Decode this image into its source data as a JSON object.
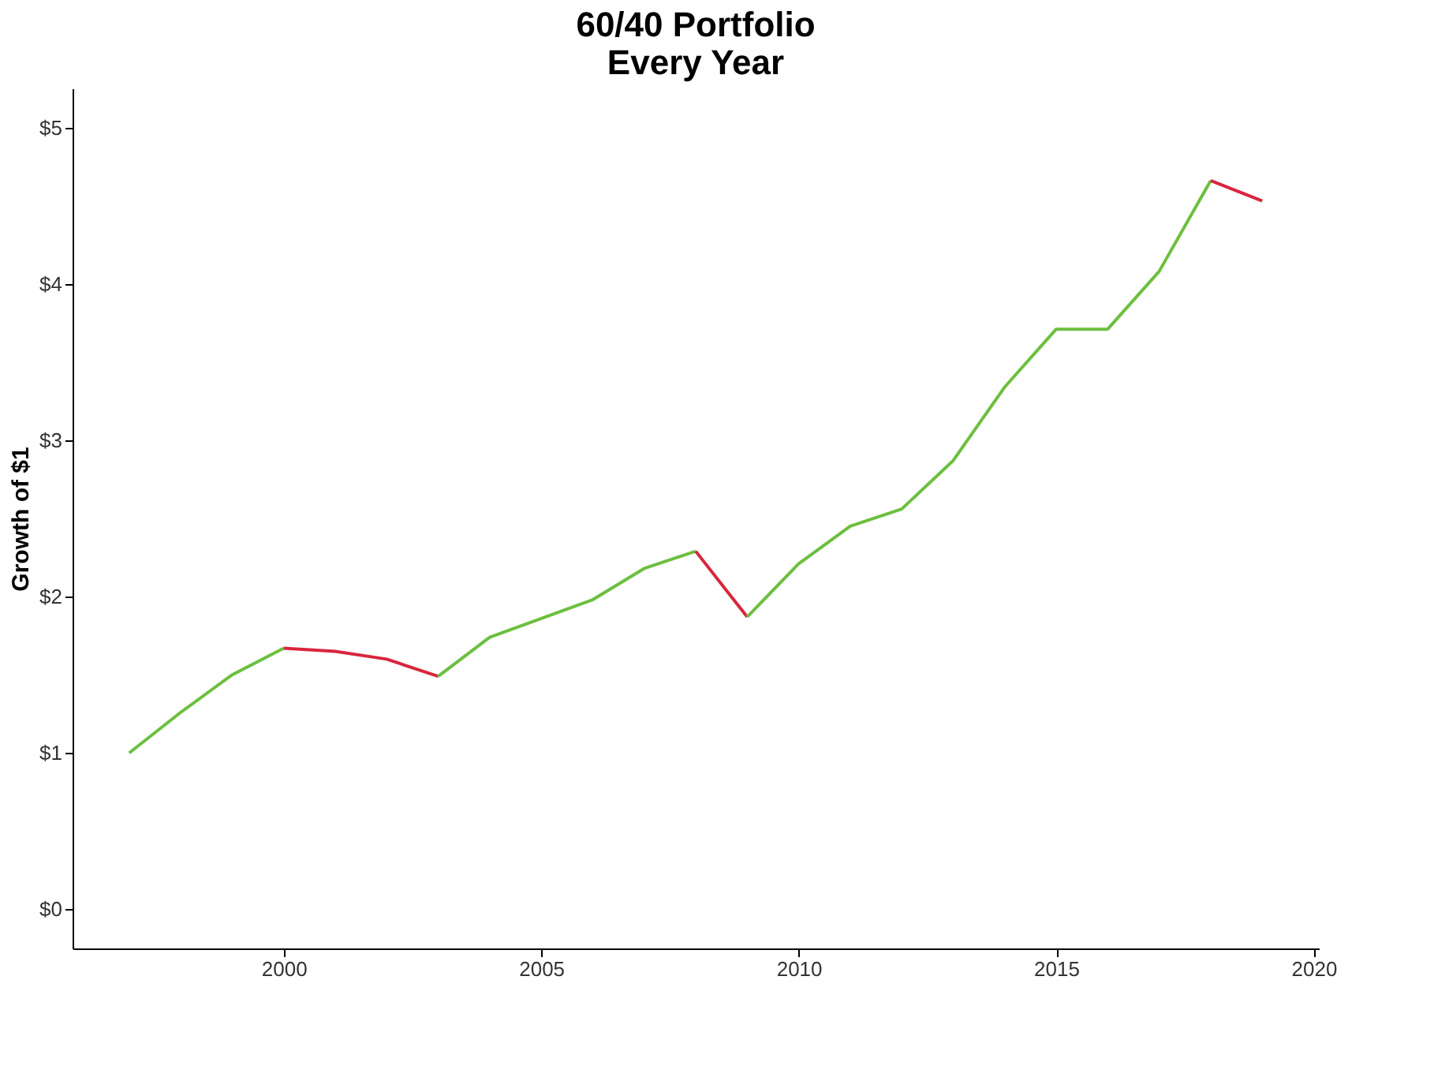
{
  "chart_data": {
    "type": "line",
    "title": [
      "60/40 Portfolio",
      "Every Year"
    ],
    "ylabel": "Growth of $1",
    "series": [
      {
        "color": "#6cbf3f",
        "x": [
          1997,
          1998,
          1999,
          2000
        ],
        "values": [
          1.0,
          1.26,
          1.5,
          1.67
        ]
      },
      {
        "color": "#d7263d",
        "x": [
          2000,
          2001,
          2002,
          2003
        ],
        "values": [
          1.67,
          1.65,
          1.6,
          1.49
        ]
      },
      {
        "color": "#6cbf3f",
        "x": [
          2003,
          2004,
          2005,
          2006,
          2007,
          2008
        ],
        "values": [
          1.49,
          1.74,
          1.86,
          1.98,
          2.18,
          2.29
        ]
      },
      {
        "color": "#d7263d",
        "x": [
          2008,
          2009
        ],
        "values": [
          2.29,
          1.87
        ]
      },
      {
        "color": "#6cbf3f",
        "x": [
          2009,
          2010,
          2011,
          2012,
          2013,
          2014,
          2015,
          2016,
          2017,
          2018
        ],
        "values": [
          1.87,
          2.21,
          2.45,
          2.56,
          2.87,
          3.34,
          3.71,
          3.71,
          4.08,
          4.66
        ]
      },
      {
        "color": "#d7263d",
        "x": [
          2018,
          2019
        ],
        "values": [
          4.66,
          4.53
        ]
      }
    ],
    "xlim": [
      1995.9,
      2020.1
    ],
    "xticks": [
      2000,
      2005,
      2010,
      2015,
      2020
    ],
    "ylim": [
      -0.25,
      5.25
    ],
    "yticks": [
      {
        "value": 0,
        "label": "$0"
      },
      {
        "value": 1,
        "label": "$1"
      },
      {
        "value": 2,
        "label": "$2"
      },
      {
        "value": 3,
        "label": "$3"
      },
      {
        "value": 4,
        "label": "$4"
      },
      {
        "value": 5,
        "label": "$5"
      }
    ],
    "grid": false,
    "marker": "none",
    "line_style": "solid"
  }
}
